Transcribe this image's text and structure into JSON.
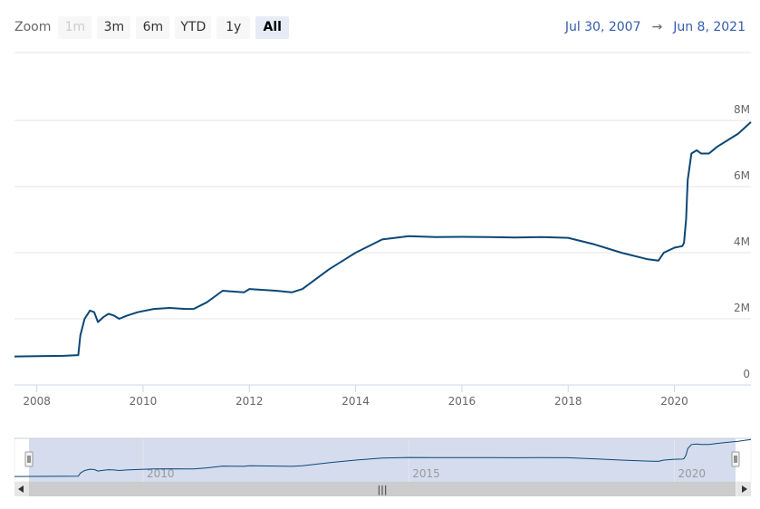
{
  "toolbar": {
    "zoom_label": "Zoom",
    "buttons": [
      {
        "label": "1m",
        "state": "disabled"
      },
      {
        "label": "3m",
        "state": "normal"
      },
      {
        "label": "6m",
        "state": "normal"
      },
      {
        "label": "YTD",
        "state": "normal"
      },
      {
        "label": "1y",
        "state": "normal"
      },
      {
        "label": "All",
        "state": "active"
      }
    ]
  },
  "range": {
    "from": "Jul 30, 2007",
    "arrow": "→",
    "to": "Jun 8, 2021"
  },
  "navigator": {
    "handle_glyph": "|||"
  },
  "colors": {
    "line": "#0d4775",
    "accent": "#335cad",
    "navigator_fill": "#ccd6eb"
  },
  "chart_data": {
    "type": "line",
    "x_start": 2007.58,
    "x_end": 2021.44,
    "ylim": [
      0,
      8000000
    ],
    "y_ticks": [
      0,
      2000000,
      4000000,
      6000000,
      8000000
    ],
    "y_tick_labels": [
      "0",
      "2M",
      "4M",
      "6M",
      "8M"
    ],
    "x_ticks": [
      2008,
      2010,
      2012,
      2014,
      2016,
      2018,
      2020
    ],
    "x_tick_labels": [
      "2008",
      "2010",
      "2012",
      "2014",
      "2016",
      "2018",
      "2020"
    ],
    "navigator_ticks": [
      2010,
      2015,
      2020
    ],
    "navigator_tick_labels": [
      "2010",
      "2015",
      "2020"
    ],
    "grid": true,
    "series": [
      {
        "x": [
          2007.58,
          2008.0,
          2008.5,
          2008.78,
          2008.82,
          2008.9,
          2009.0,
          2009.08,
          2009.15,
          2009.25,
          2009.35,
          2009.45,
          2009.55,
          2009.7,
          2009.9,
          2010.2,
          2010.5,
          2010.8,
          2010.95,
          2011.2,
          2011.5,
          2011.9,
          2012.0,
          2012.5,
          2012.8,
          2013.0,
          2013.5,
          2014.0,
          2014.5,
          2015.0,
          2015.5,
          2016.0,
          2016.5,
          2017.0,
          2017.5,
          2018.0,
          2018.5,
          2019.0,
          2019.5,
          2019.7,
          2019.8,
          2020.0,
          2020.15,
          2020.18,
          2020.22,
          2020.25,
          2020.32,
          2020.42,
          2020.5,
          2020.65,
          2020.8,
          2021.0,
          2021.2,
          2021.44
        ],
        "values": [
          860000,
          870000,
          880000,
          900000,
          1500000,
          2000000,
          2250000,
          2200000,
          1900000,
          2050000,
          2150000,
          2100000,
          2000000,
          2100000,
          2200000,
          2300000,
          2330000,
          2300000,
          2300000,
          2500000,
          2850000,
          2800000,
          2900000,
          2850000,
          2800000,
          2900000,
          3500000,
          4000000,
          4400000,
          4500000,
          4470000,
          4480000,
          4470000,
          4460000,
          4470000,
          4450000,
          4250000,
          4000000,
          3800000,
          3760000,
          4000000,
          4150000,
          4200000,
          4300000,
          5000000,
          6200000,
          7000000,
          7100000,
          7000000,
          7000000,
          7200000,
          7400000,
          7600000,
          7950000
        ]
      }
    ]
  }
}
